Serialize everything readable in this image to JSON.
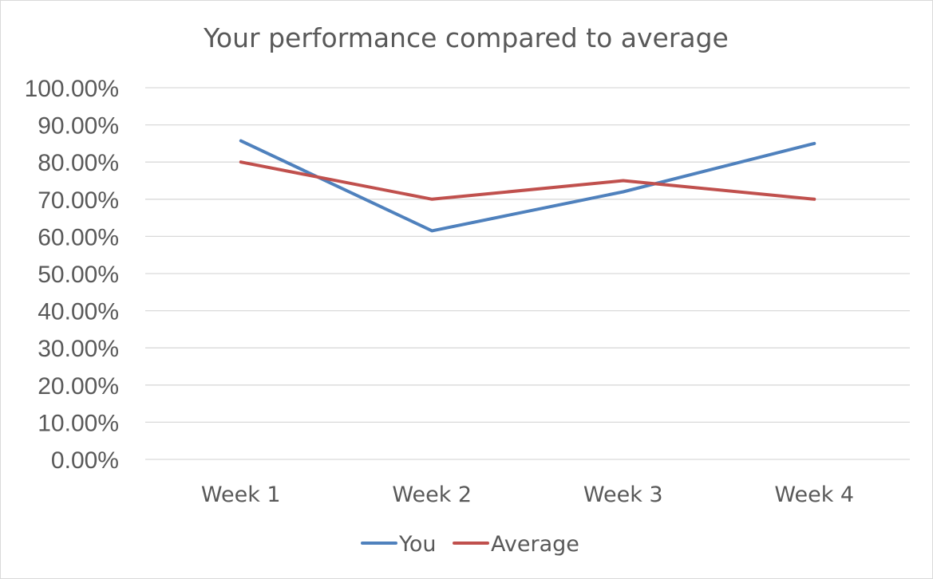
{
  "chart_data": {
    "type": "line",
    "title": "Your performance compared to average",
    "xlabel": "",
    "ylabel": "",
    "categories": [
      "Week 1",
      "Week 2",
      "Week 3",
      "Week 4"
    ],
    "y_tick_labels": [
      "0.00%",
      "10.00%",
      "20.00%",
      "30.00%",
      "40.00%",
      "50.00%",
      "60.00%",
      "70.00%",
      "80.00%",
      "90.00%",
      "100.00%"
    ],
    "ylim": [
      0,
      100
    ],
    "y_unit": "%",
    "grid": true,
    "legend_position": "bottom",
    "series": [
      {
        "name": "You",
        "values": [
          85.7,
          61.5,
          72.0,
          85.0
        ],
        "color": "#4F81BD"
      },
      {
        "name": "Average",
        "values": [
          80.0,
          70.0,
          75.0,
          70.0
        ],
        "color": "#C0504D"
      }
    ]
  }
}
